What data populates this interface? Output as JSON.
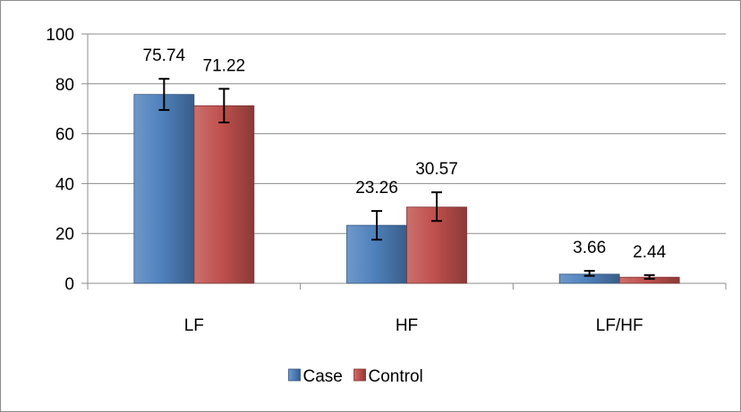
{
  "chart_data": {
    "type": "bar",
    "categories": [
      "LF",
      "HF",
      "LF/HF"
    ],
    "series": [
      {
        "name": "Case",
        "values": [
          75.74,
          23.26,
          3.66
        ],
        "error_low": [
          69.5,
          17.5,
          3.0
        ],
        "error_high": [
          82.0,
          29.0,
          5.0
        ],
        "data_labels": [
          "75.74",
          "23.26",
          "3.66"
        ],
        "color": "#4f81bd"
      },
      {
        "name": "Control",
        "values": [
          71.22,
          30.57,
          2.44
        ],
        "error_low": [
          64.5,
          25.0,
          1.8
        ],
        "error_high": [
          78.0,
          36.5,
          3.3
        ],
        "data_labels": [
          "71.22",
          "30.57",
          "2.44"
        ],
        "color": "#c0504d"
      }
    ],
    "yticks": [
      "0",
      "20",
      "40",
      "60",
      "80",
      "100"
    ],
    "ylim": [
      0,
      100
    ],
    "grid": true,
    "legend_position": "bottom"
  }
}
